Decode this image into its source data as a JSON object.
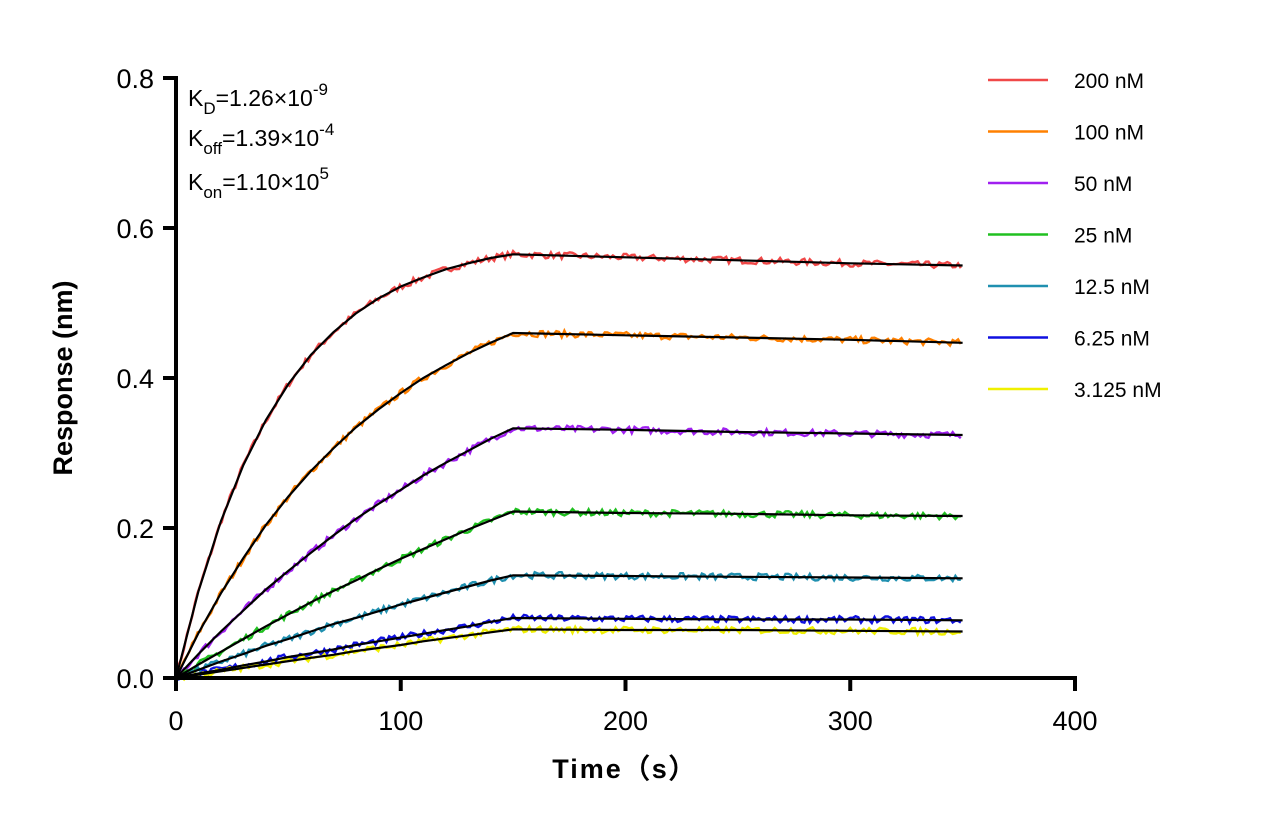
{
  "chart_data": {
    "type": "line",
    "xlabel": "Time（s）",
    "ylabel": "Response (nm)",
    "xlim": [
      0,
      400
    ],
    "ylim": [
      0,
      0.8
    ],
    "xticks": [
      "0",
      "100",
      "200",
      "300",
      "400"
    ],
    "yticks": [
      "0.0",
      "0.2",
      "0.4",
      "0.6",
      "0.8"
    ],
    "grid": false,
    "legend_position": "right",
    "annotations": [
      {
        "base": "K",
        "sub": "D",
        "text": "=1.26×10",
        "sup": "-9"
      },
      {
        "base": "K",
        "sub": "off",
        "text": "=1.39×10",
        "sup": "-4"
      },
      {
        "base": "K",
        "sub": "on",
        "text": "=1.10×10",
        "sup": "5"
      }
    ],
    "fit_color": "#000000",
    "x": [
      0,
      10,
      20,
      30,
      40,
      50,
      60,
      70,
      80,
      90,
      100,
      110,
      120,
      130,
      140,
      150,
      200,
      250,
      300,
      350
    ],
    "series": [
      {
        "name": "200 nM",
        "color": "#f04848",
        "values": [
          0,
          0.116,
          0.209,
          0.284,
          0.344,
          0.392,
          0.431,
          0.461,
          0.486,
          0.506,
          0.522,
          0.534,
          0.545,
          0.553,
          0.56,
          0.565,
          0.561,
          0.557,
          0.553,
          0.55
        ]
      },
      {
        "name": "100 nM",
        "color": "#ff8000",
        "values": [
          0,
          0.06,
          0.113,
          0.16,
          0.204,
          0.242,
          0.276,
          0.306,
          0.334,
          0.358,
          0.38,
          0.4,
          0.417,
          0.433,
          0.447,
          0.46,
          0.457,
          0.454,
          0.451,
          0.447
        ]
      },
      {
        "name": "50 nM",
        "color": "#a020f0",
        "values": [
          0,
          0.032,
          0.062,
          0.09,
          0.118,
          0.143,
          0.167,
          0.19,
          0.212,
          0.232,
          0.251,
          0.27,
          0.287,
          0.303,
          0.319,
          0.333,
          0.331,
          0.328,
          0.326,
          0.324
        ]
      },
      {
        "name": "25 nM",
        "color": "#20c020",
        "values": [
          0,
          0.018,
          0.035,
          0.052,
          0.069,
          0.085,
          0.101,
          0.116,
          0.13,
          0.145,
          0.159,
          0.172,
          0.185,
          0.198,
          0.21,
          0.222,
          0.22,
          0.219,
          0.217,
          0.216
        ]
      },
      {
        "name": "12.5 nM",
        "color": "#2090b0",
        "values": [
          0,
          0.011,
          0.022,
          0.032,
          0.043,
          0.052,
          0.062,
          0.072,
          0.08,
          0.089,
          0.098,
          0.106,
          0.114,
          0.122,
          0.13,
          0.137,
          0.136,
          0.135,
          0.134,
          0.133
        ]
      },
      {
        "name": "6.25 nM",
        "color": "#1010e0",
        "values": [
          0,
          0.006,
          0.011,
          0.017,
          0.022,
          0.028,
          0.033,
          0.038,
          0.044,
          0.049,
          0.054,
          0.059,
          0.064,
          0.069,
          0.075,
          0.08,
          0.079,
          0.078,
          0.078,
          0.077
        ]
      },
      {
        "name": "3.125 nM",
        "color": "#f0f000",
        "values": [
          0,
          0.0045,
          0.009,
          0.0135,
          0.018,
          0.0225,
          0.027,
          0.031,
          0.036,
          0.04,
          0.044,
          0.049,
          0.053,
          0.057,
          0.061,
          0.065,
          0.064,
          0.064,
          0.063,
          0.062
        ]
      }
    ]
  }
}
